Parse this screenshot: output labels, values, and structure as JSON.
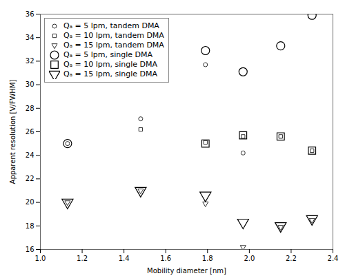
{
  "chart_data": {
    "type": "scatter",
    "xlabel": "Mobility diameter [nm]",
    "ylabel": "Apparent resolution [V/FWHM]",
    "xlim": [
      1.0,
      2.4
    ],
    "ylim": [
      16,
      36
    ],
    "xticks": [
      {
        "value": 1.0,
        "label": "1.0"
      },
      1.2,
      1.4,
      1.6,
      1.8,
      {
        "value": 2.0,
        "label": "2.0"
      },
      2.2,
      2.4
    ],
    "yticks": [
      16,
      18,
      20,
      22,
      24,
      26,
      28,
      30,
      32,
      34,
      36
    ],
    "legend": "upper left",
    "series": [
      {
        "name": "Qₐ = 5 lpm, tandem DMA",
        "color": "black",
        "marker": "circle",
        "x": [
          1.13,
          1.48,
          1.79,
          1.97
        ],
        "values": [
          25.0,
          27.1,
          31.7,
          24.2
        ]
      },
      {
        "name": "Qₐ = 10 lpm, tandem DMA",
        "color": "black",
        "marker": "square",
        "x": [
          1.48,
          1.79,
          1.97,
          2.15,
          2.3
        ],
        "values": [
          26.2,
          25.1,
          25.6,
          25.6,
          24.4
        ]
      },
      {
        "name": "Qₐ = 15 lpm, tandem DMA",
        "color": "black",
        "marker": "triangle-down",
        "x": [
          1.13,
          1.48,
          1.79,
          1.97,
          2.15,
          2.3
        ],
        "values": [
          20.0,
          21.0,
          19.9,
          16.2,
          17.9,
          18.5
        ]
      },
      {
        "name": "Qₐ = 5 lpm, single DMA",
        "color": "black",
        "marker": "circle",
        "x": [
          1.13,
          1.79,
          1.97,
          2.15,
          2.3
        ],
        "values": [
          25.0,
          32.9,
          31.1,
          33.3,
          35.9
        ]
      },
      {
        "name": "Qₐ = 10 lpm, single DMA",
        "color": "black",
        "marker": "square",
        "x": [
          1.79,
          1.97,
          2.15,
          2.3
        ],
        "values": [
          25.0,
          25.7,
          25.6,
          24.4
        ]
      },
      {
        "name": "Qₐ = 15 lpm, single DMA",
        "color": "black",
        "marker": "triangle-down",
        "x": [
          1.13,
          1.48,
          1.79,
          1.97,
          2.15,
          2.3
        ],
        "values": [
          20.0,
          21.0,
          20.6,
          18.3,
          18.0,
          18.6
        ]
      }
    ]
  }
}
